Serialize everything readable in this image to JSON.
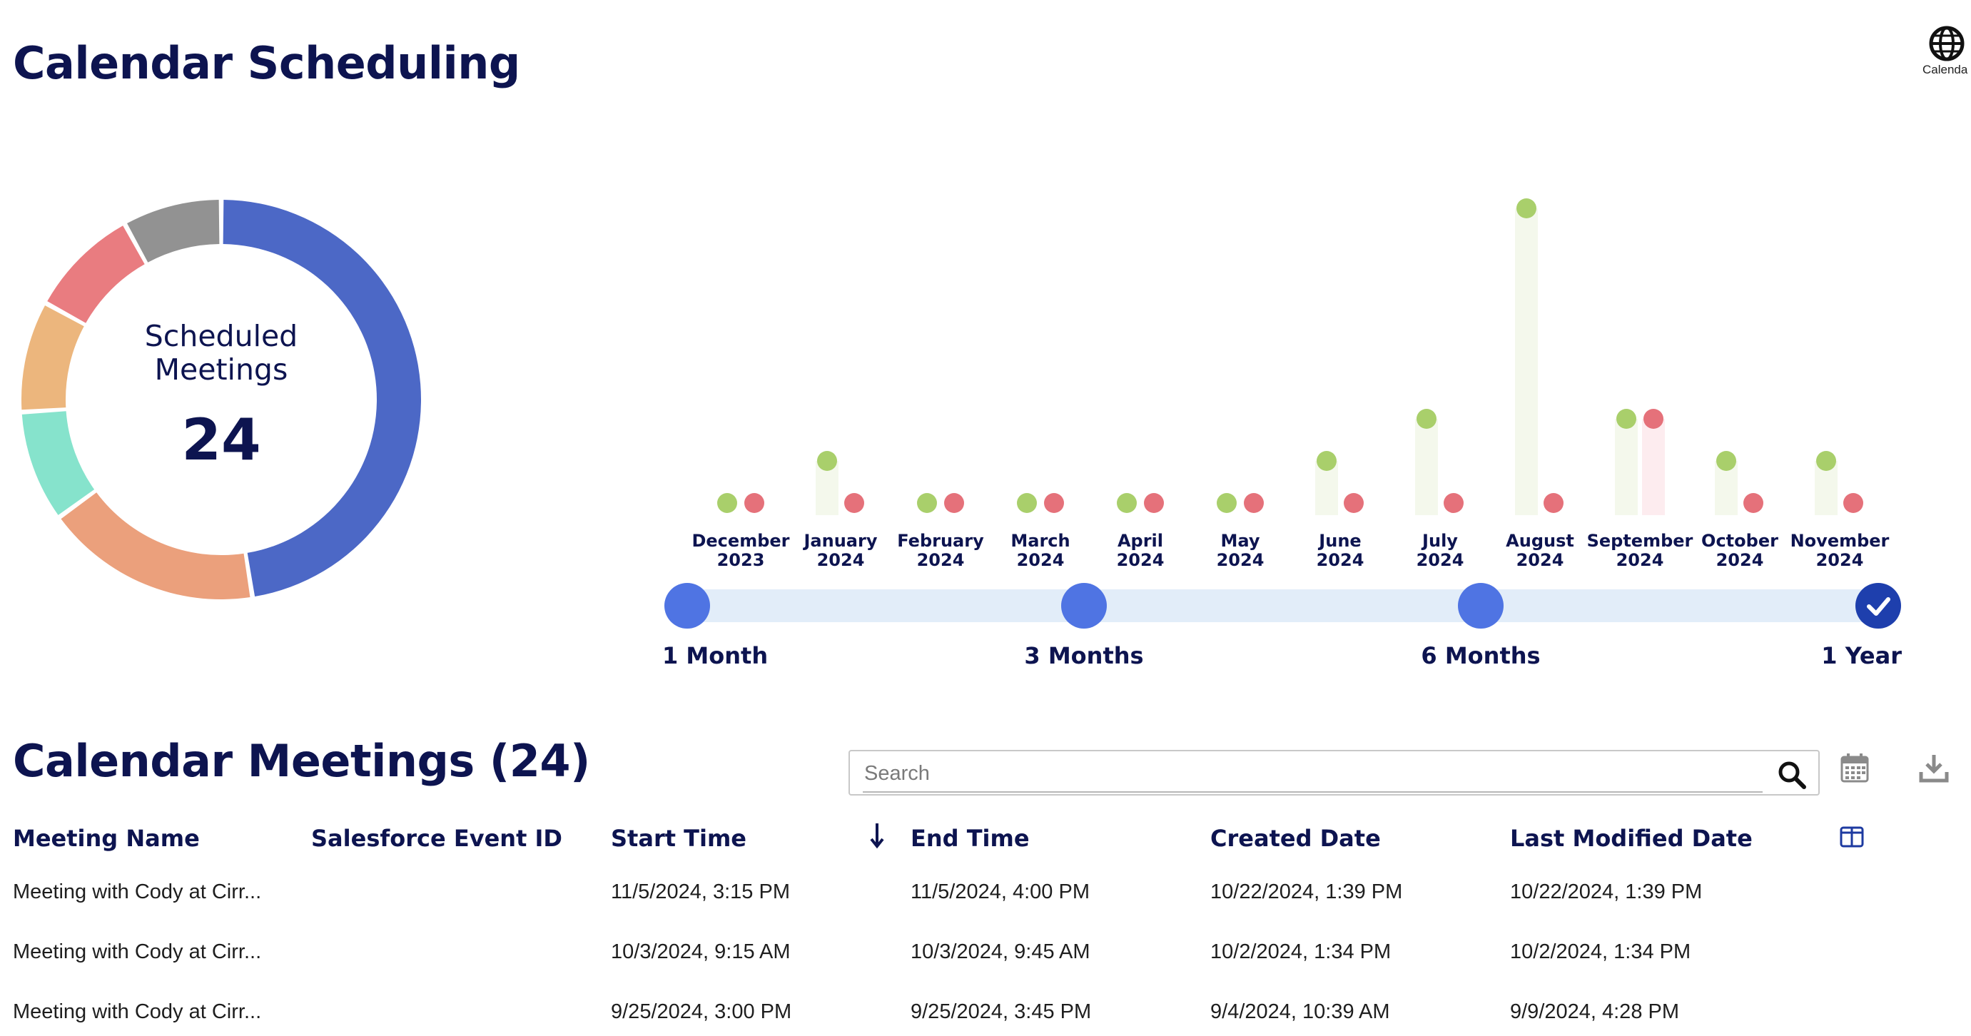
{
  "page": {
    "title": "Calendar Scheduling"
  },
  "header": {
    "globe_label": "Calenda"
  },
  "summary": {
    "label": "Scheduled Meetings",
    "total": "24",
    "segment_colors": [
      "#4c68c6",
      "#eba07c",
      "#86e3cc",
      "#ecb67d",
      "#e97c80",
      "#929292"
    ]
  },
  "chart_data": {
    "type": "scatter",
    "categories": [
      "December 2023",
      "January 2024",
      "February 2024",
      "March 2024",
      "April 2024",
      "May 2024",
      "June 2024",
      "July 2024",
      "August 2024",
      "September 2024",
      "October 2024",
      "November 2024"
    ],
    "category_lines": [
      [
        "December",
        "2023"
      ],
      [
        "January",
        "2024"
      ],
      [
        "February",
        "2024"
      ],
      [
        "March",
        "2024"
      ],
      [
        "April",
        "2024"
      ],
      [
        "May",
        "2024"
      ],
      [
        "June",
        "2024"
      ],
      [
        "July",
        "2024"
      ],
      [
        "August",
        "2024"
      ],
      [
        "September",
        "2024"
      ],
      [
        "October",
        "2024"
      ],
      [
        "November",
        "2024"
      ]
    ],
    "series": [
      {
        "color": "#a9cf6b",
        "values": [
          0,
          1,
          0,
          0,
          0,
          0,
          1,
          2,
          7,
          2,
          1,
          1
        ]
      },
      {
        "color": "#e5717a",
        "values": [
          0,
          0,
          0,
          0,
          0,
          0,
          0,
          0,
          0,
          2,
          0,
          0
        ]
      }
    ],
    "ylim": [
      0,
      7
    ],
    "grid": false
  },
  "range_selector": {
    "options": [
      "1 Month",
      "3 Months",
      "6 Months",
      "1 Year"
    ],
    "selected": "1 Year"
  },
  "meetings": {
    "title": "Calendar Meetings (24)",
    "search_placeholder": "Search",
    "columns": [
      "Meeting Name",
      "Salesforce Event ID",
      "Start Time",
      "End Time",
      "Created Date",
      "Last Modified Date"
    ],
    "rows": [
      {
        "name": "Meeting with Cody at Cirr...",
        "event_id": "",
        "start": "11/5/2024, 3:15 PM",
        "end": "11/5/2024, 4:00 PM",
        "created": "10/22/2024, 1:39 PM",
        "modified": "10/22/2024, 1:39 PM"
      },
      {
        "name": "Meeting with Cody at Cirr...",
        "event_id": "",
        "start": "10/3/2024, 9:15 AM",
        "end": "10/3/2024, 9:45 AM",
        "created": "10/2/2024, 1:34 PM",
        "modified": "10/2/2024, 1:34 PM"
      },
      {
        "name": "Meeting with Cody at Cirr...",
        "event_id": "",
        "start": "9/25/2024, 3:00 PM",
        "end": "9/25/2024, 3:45 PM",
        "created": "9/4/2024, 10:39 AM",
        "modified": "9/9/2024, 4:28 PM"
      }
    ]
  }
}
